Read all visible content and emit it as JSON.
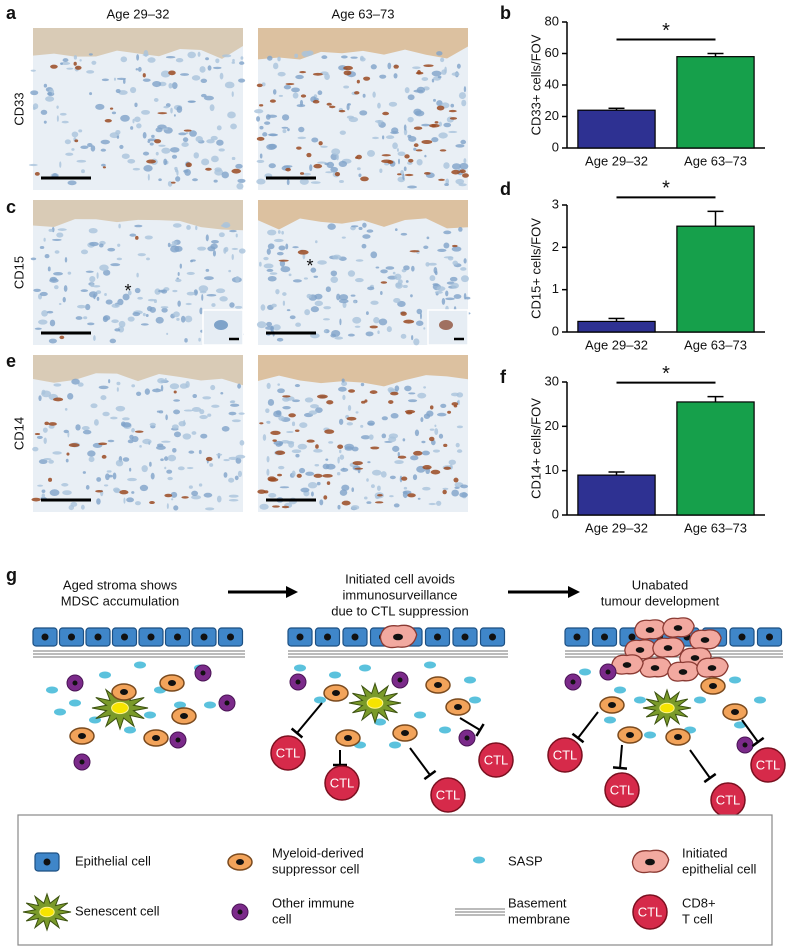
{
  "panel_labels": [
    "a",
    "b",
    "c",
    "d",
    "e",
    "f",
    "g"
  ],
  "micrographs": {
    "columns": [
      "Age 29–32",
      "Age 63–73"
    ],
    "rows": [
      "CD33",
      "CD15",
      "CD14"
    ],
    "asterisk": "*"
  },
  "chart_data": [
    {
      "type": "bar",
      "categories": [
        "Age 29–32",
        "Age 63–73"
      ],
      "values": [
        24,
        58
      ],
      "errors": [
        1.2,
        2
      ],
      "colors": [
        "#2e3192",
        "#16a04b"
      ],
      "ylabel": "CD33+ cells/FOV",
      "ylim": [
        0,
        80
      ],
      "yticks": [
        0,
        20,
        40,
        60,
        80
      ],
      "annotation": "*"
    },
    {
      "type": "bar",
      "categories": [
        "Age 29–32",
        "Age 63–73"
      ],
      "values": [
        0.25,
        2.5
      ],
      "errors": [
        0.07,
        0.35
      ],
      "colors": [
        "#2e3192",
        "#16a04b"
      ],
      "ylabel": "CD15+ cells/FOV",
      "ylim": [
        0,
        3
      ],
      "yticks": [
        0,
        1,
        2,
        3
      ],
      "annotation": "*"
    },
    {
      "type": "bar",
      "categories": [
        "Age 29–32",
        "Age 63–73"
      ],
      "values": [
        9,
        25.5
      ],
      "errors": [
        0.7,
        1.2
      ],
      "colors": [
        "#2e3192",
        "#16a04b"
      ],
      "ylabel": "CD14+ cells/FOV",
      "ylim": [
        0,
        30
      ],
      "yticks": [
        0,
        10,
        20,
        30
      ],
      "annotation": "*"
    }
  ],
  "diagram": {
    "stages": [
      {
        "caption": [
          "Aged stroma shows",
          "MDSC accumulation"
        ]
      },
      {
        "caption": [
          "Initiated cell avoids",
          "immunosurveillance",
          "due to CTL suppression"
        ]
      },
      {
        "caption": [
          "Unabated",
          "tumour development"
        ]
      }
    ],
    "ctl": "CTL"
  },
  "legend": {
    "items": [
      {
        "label": [
          "Epithelial cell"
        ]
      },
      {
        "label": [
          "Myeloid-derived",
          "suppressor cell"
        ]
      },
      {
        "label": [
          "SASP"
        ]
      },
      {
        "label": [
          "Initiated",
          "epithelial cell"
        ]
      },
      {
        "label": [
          "Senescent cell"
        ]
      },
      {
        "label": [
          "Other immune",
          "cell"
        ]
      },
      {
        "label": [
          "Basement",
          "membrane"
        ]
      },
      {
        "label": [
          "CD8+",
          "T cell"
        ]
      }
    ],
    "ctl": "CTL"
  }
}
